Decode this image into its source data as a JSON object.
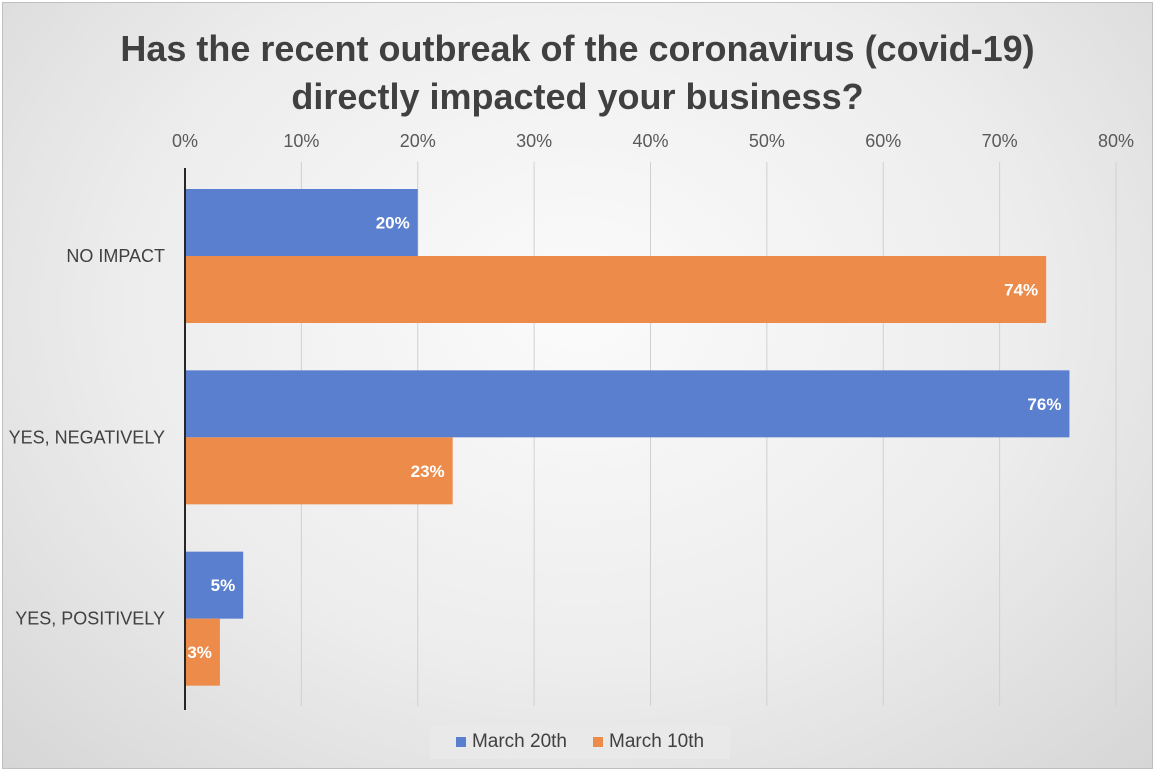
{
  "chart_data": {
    "type": "bar",
    "orientation": "horizontal",
    "title_lines": [
      "Has the recent outbreak of the coronavirus (covid-19)",
      "directly impacted your business?"
    ],
    "xlabel": "",
    "ylabel": "",
    "xlim": [
      0,
      80
    ],
    "x_ticks": [
      "0%",
      "10%",
      "20%",
      "30%",
      "40%",
      "50%",
      "60%",
      "70%",
      "80%"
    ],
    "x_axis_position": "top",
    "grid": true,
    "categories": [
      "NO IMPACT",
      "YES, NEGATIVELY",
      "YES, POSITIVELY"
    ],
    "series": [
      {
        "name": "March 20th",
        "color": "#5b7fcf",
        "values": [
          20,
          76,
          5
        ],
        "labels": [
          "20%",
          "76%",
          "5%"
        ]
      },
      {
        "name": "March 10th",
        "color": "#ed8b4a",
        "values": [
          74,
          23,
          3
        ],
        "labels": [
          "74%",
          "23%",
          "3%"
        ]
      }
    ],
    "legend_position": "bottom"
  }
}
